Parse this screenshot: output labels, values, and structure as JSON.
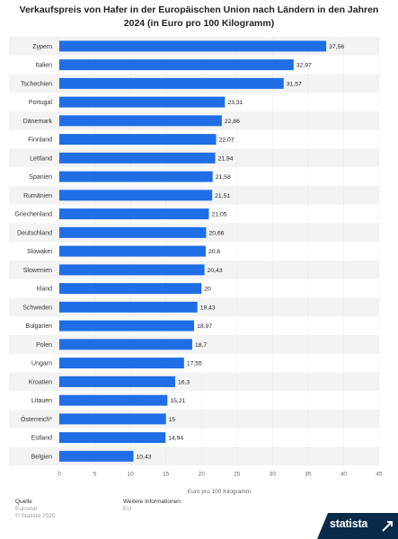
{
  "title": "Verkaufspreis von Hafer in der Europäischen Union nach Ländern in den Jahren 2024 (in Euro pro 100 Kilogramm)",
  "footer": {
    "quelle_label": "Quelle",
    "quelle_text": "Eurostat",
    "copyright": "© Statista 2025",
    "info_label": "Weitere Informationen:",
    "info_text": "EU",
    "brand": "statista"
  },
  "colors": {
    "bar": "#1f6ee6",
    "stripe": "#f3f3f3",
    "grid": "#dddddd",
    "badge": "#0a2a4a"
  },
  "icons": {
    "brand": "statista-logo-icon"
  },
  "chart_data": {
    "type": "bar",
    "orientation": "horizontal",
    "categories": [
      "Zypern",
      "Italien",
      "Tschechien",
      "Portugal",
      "Dänemark",
      "Finnland",
      "Lettland",
      "Spanien",
      "Rumänien",
      "Griechenland",
      "Deutschland",
      "Slowakei",
      "Slowenien",
      "Irland",
      "Schweden",
      "Bulgarien",
      "Polen",
      "Ungarn",
      "Kroatien",
      "Litauen",
      "Österreich*",
      "Estland",
      "Belgien"
    ],
    "values": [
      37.56,
      32.97,
      31.57,
      23.31,
      22.86,
      22.07,
      21.94,
      21.58,
      21.51,
      21.05,
      20.66,
      20.6,
      20.43,
      20,
      19.43,
      18.97,
      18.7,
      17.55,
      16.3,
      15.21,
      15,
      14.94,
      10.43
    ],
    "value_labels": [
      "37,56",
      "32,97",
      "31,57",
      "23,31",
      "22,86",
      "22,07",
      "21,94",
      "21,58",
      "21,51",
      "21,05",
      "20,66",
      "20,6",
      "20,43",
      "20",
      "19,43",
      "18,97",
      "18,7",
      "17,55",
      "16,3",
      "15,21",
      "15",
      "14,94",
      "10,43"
    ],
    "xticks": [
      0,
      5,
      10,
      15,
      20,
      25,
      30,
      35,
      40,
      45
    ],
    "xlim": [
      0,
      45
    ],
    "xlabel": "Euro pro 100 Kilogramm",
    "grid": true,
    "legend": "none"
  }
}
